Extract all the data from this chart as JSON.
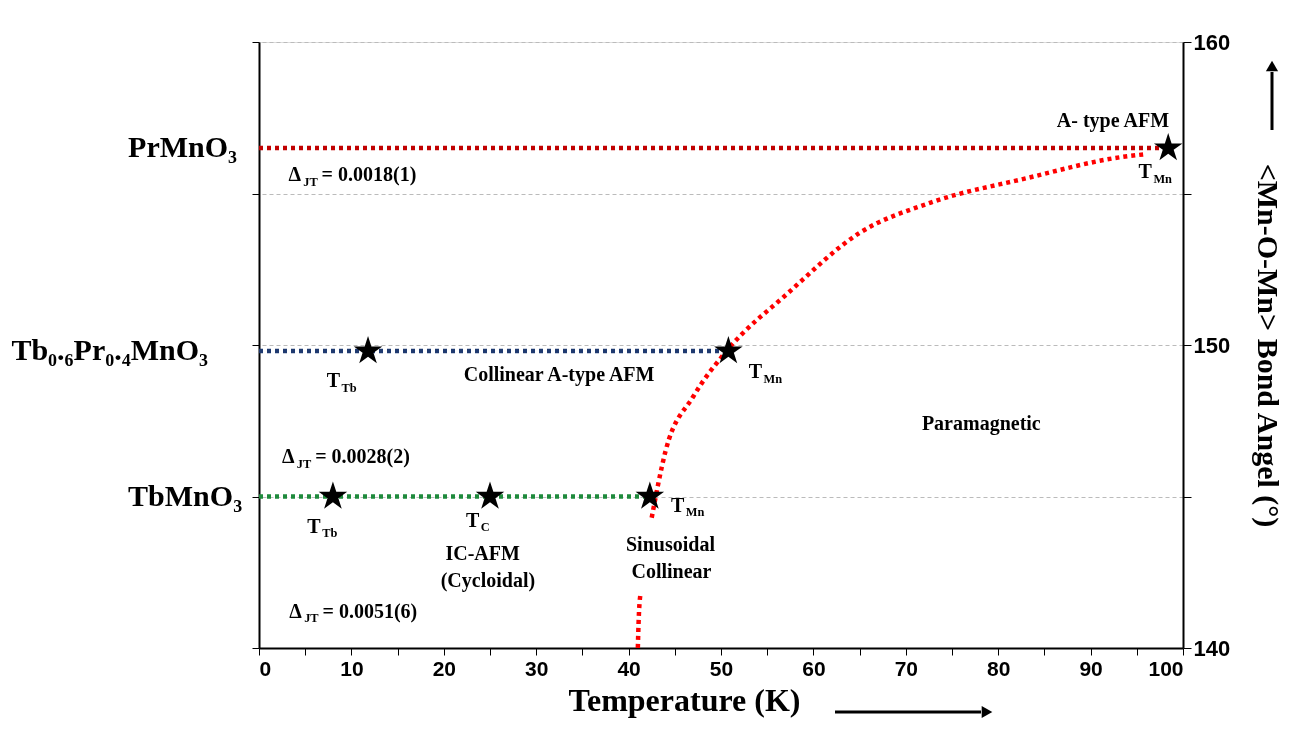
{
  "chart_data": {
    "type": "line",
    "xlabel": "Temperature (K)",
    "ylabel": "<Mn-O-Mn> Bond Angel (°)",
    "xlim": [
      0,
      100
    ],
    "xticks": [
      0,
      {
        "value": 5,
        "label": null
      },
      10,
      {
        "value": 15,
        "label": null
      },
      20,
      {
        "value": 25,
        "label": null
      },
      30,
      {
        "value": 35,
        "label": null
      },
      40,
      {
        "value": 45,
        "label": null
      },
      50,
      {
        "value": 55,
        "label": null
      },
      60,
      {
        "value": 65,
        "label": null
      },
      70,
      {
        "value": 75,
        "label": null
      },
      80,
      {
        "value": 85,
        "label": null
      },
      90,
      {
        "value": 95,
        "label": null
      },
      100
    ],
    "ylim": [
      140,
      160
    ],
    "yticks": [
      140,
      {
        "value": 145,
        "label": null
      },
      150,
      {
        "value": 155,
        "label": null
      },
      160
    ],
    "grid": "y",
    "line_style": "dotted",
    "series": [
      {
        "name": "PrMnO₃",
        "color": "#c00000",
        "x": [
          0,
          98.4
        ],
        "values": [
          156.5,
          156.5
        ]
      },
      {
        "name": "Tb₀.₆Pr₀.₄MnO₃",
        "color": "#1f3a70",
        "x": [
          0,
          50.8
        ],
        "values": [
          149.8,
          149.8
        ]
      },
      {
        "name": "TbMnO₃",
        "color": "#1e8a3c",
        "x": [
          0,
          42.3
        ],
        "values": [
          145,
          145
        ]
      },
      {
        "color": "#ff0000",
        "x": [
          41.0,
          41.1,
          41.3,
          42.0,
          42.5,
          44.0,
          47.0,
          50.6,
          57.2,
          65.0,
          72.7,
          83.0,
          93.3,
          96.0
        ],
        "values": [
          140,
          141,
          141.8,
          null,
          144.3,
          146.5,
          148.3,
          149.8,
          151.7,
          153.7,
          154.7,
          155.5,
          156.2,
          156.3
        ]
      },
      {
        "type": "scatter",
        "marker": "star",
        "color": "#000000",
        "x": [
          98.4,
          11.8,
          50.8,
          8.0,
          25.0,
          42.3
        ],
        "values": [
          156.5,
          149.8,
          149.8,
          145,
          145,
          145
        ]
      }
    ],
    "annotations": [
      "A- type AFM",
      "T$_{Mn}$",
      "Δ$_{JT}$ = 0.0018(1)",
      "T$_{Tb}$",
      "Collinear A-type AFM",
      "T$_{Mn}$",
      "Paramagnetic",
      "Δ$_{JT}$ = 0.0028(2)",
      "T$_{Tb}$",
      "T$_{C}$",
      "IC-AFM",
      "(Cycloidal)",
      "T$_{Mn}$",
      "Sinusoidal",
      "Collinear",
      "Δ$_{JT}$ = 0.0051(6)"
    ]
  }
}
